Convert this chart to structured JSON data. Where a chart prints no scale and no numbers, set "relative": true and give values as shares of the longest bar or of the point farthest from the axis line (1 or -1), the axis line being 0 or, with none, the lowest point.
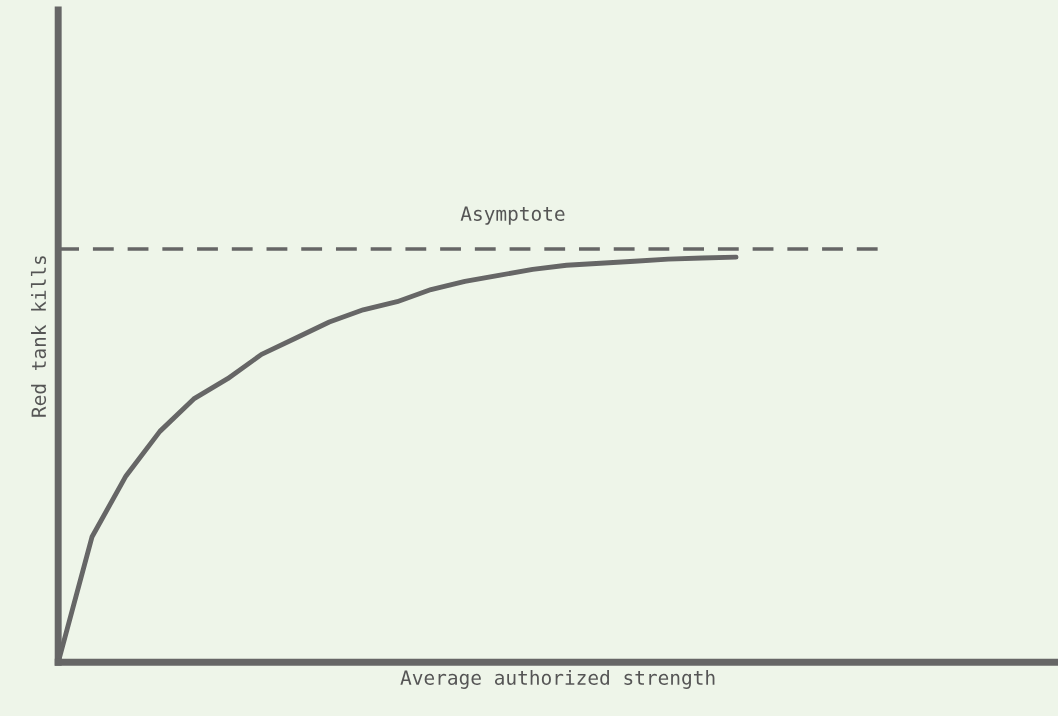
{
  "chart_data": {
    "type": "line",
    "relative": true,
    "xlabel": "Average authorized strength",
    "ylabel": "Red tank kills",
    "categories": [
      null,
      null,
      null,
      null,
      null,
      null,
      null,
      null,
      null,
      null,
      null,
      null,
      null,
      null,
      null,
      null,
      null,
      null,
      null,
      null,
      null,
      null,
      null,
      null,
      null,
      null,
      null,
      null,
      null,
      null
    ],
    "series": [
      {
        "color": "#666666",
        "values": [
          0,
          0.31,
          0.46,
          0.57,
          0.65,
          0.7,
          0.76,
          0.8,
          0.84,
          0.87,
          0.89,
          0.92,
          0.94,
          0.955,
          0.97,
          0.98,
          0.985,
          0.99,
          0.995,
          0.998,
          1.0,
          null,
          null,
          null,
          null,
          null,
          null,
          null,
          null,
          null
        ]
      }
    ],
    "ref_lines": [
      {
        "axis": "y",
        "value": 1.02,
        "label": "Asymptote",
        "color": "#666666",
        "line_style": "dashed"
      }
    ],
    "grid": false,
    "legend": false,
    "marker": "none",
    "line_style": "solid"
  }
}
